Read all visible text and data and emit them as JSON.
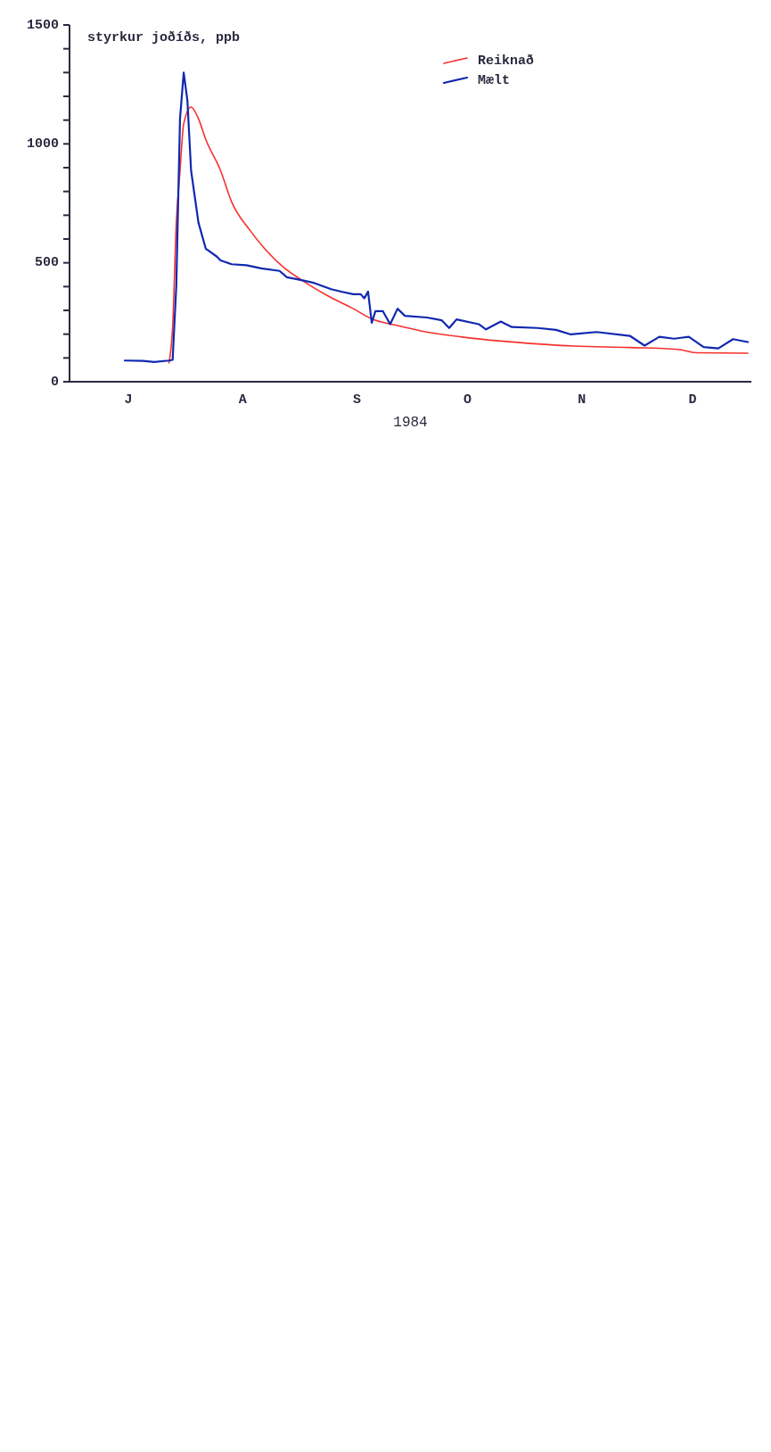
{
  "chart_data": {
    "type": "line",
    "ylabel": "styrkur joðíðs, ppb",
    "xlabel": "1984",
    "categories": [
      null,
      null,
      null,
      null,
      null,
      null,
      null,
      null,
      null,
      null,
      null,
      null,
      null,
      null,
      null,
      "J",
      null,
      null,
      null,
      null,
      null,
      null,
      null,
      null,
      null,
      null,
      null,
      null,
      null,
      null,
      null,
      null,
      null,
      null,
      null,
      null,
      null,
      null,
      null,
      null,
      null,
      null,
      null,
      null,
      null,
      null,
      "A",
      null,
      null,
      null,
      null,
      null,
      null,
      null,
      null,
      null,
      null,
      null,
      null,
      null,
      null,
      null,
      null,
      null,
      null,
      null,
      null,
      null,
      null,
      null,
      null,
      null,
      null,
      null,
      null,
      null,
      null,
      "S",
      null,
      null,
      null,
      null,
      null,
      null,
      null,
      null,
      null,
      null,
      null,
      null,
      null,
      null,
      null,
      null,
      null,
      null,
      null,
      null,
      null,
      null,
      null,
      null,
      null,
      null,
      null,
      null,
      null,
      "O",
      null,
      null,
      null,
      null,
      null,
      null,
      null,
      null,
      null,
      null,
      null,
      null,
      null,
      null,
      null,
      null,
      null,
      null,
      null,
      null,
      null,
      null,
      null,
      null,
      null,
      null,
      null,
      null,
      null,
      null,
      "N",
      null,
      null,
      null,
      null,
      null,
      null,
      null,
      null,
      null,
      null,
      null,
      null,
      null,
      null,
      null,
      null,
      null,
      null,
      null,
      null,
      null,
      null,
      null,
      null,
      null,
      null,
      null,
      null,
      null,
      "D",
      null,
      null,
      null,
      null,
      null,
      null,
      null,
      null,
      null,
      null,
      null,
      null,
      null,
      null,
      null
    ],
    "ylim": [
      0,
      1500
    ],
    "yticks": [
      0,
      {
        "value": 100,
        "label": null
      },
      {
        "value": 200,
        "label": null
      },
      {
        "value": 300,
        "label": null
      },
      {
        "value": 400,
        "label": null
      },
      500,
      {
        "value": 600,
        "label": null
      },
      {
        "value": 700,
        "label": null
      },
      {
        "value": 800,
        "label": null
      },
      {
        "value": 900,
        "label": null
      },
      1000,
      {
        "value": 1100,
        "label": null
      },
      {
        "value": 1200,
        "label": null
      },
      {
        "value": 1300,
        "label": null
      },
      {
        "value": 1400,
        "label": null
      },
      1500
    ],
    "grid": false,
    "legend": "top right",
    "marker": "none",
    "series": [
      {
        "name": "Reiknað",
        "color": "#f5302e",
        "values": [
          null,
          null,
          null,
          null,
          null,
          null,
          null,
          null,
          null,
          null,
          null,
          null,
          null,
          null,
          null,
          null,
          null,
          null,
          null,
          null,
          null,
          null,
          null,
          null,
          null,
          null,
          79,
          231,
          669,
          888,
          1084,
          null,
          1155,
          null,
          1106,
          null,
          1018,
          null,
          null,
          null,
          888,
          null,
          null,
          756,
          null,
          null,
          null,
          null,
          636,
          null,
          null,
          null,
          559,
          null,
          null,
          null,
          null,
          482,
          null,
          null,
          null,
          null,
          427,
          null,
          null,
          null,
          null,
          null,
          null,
          362,
          null,
          null,
          null,
          null,
          null,
          null,
          307,
          null,
          null,
          null,
          null,
          264,
          null,
          null,
          null,
          null,
          null,
          null,
          236,
          null,
          null,
          null,
          null,
          null,
          215,
          null,
          null,
          null,
          null,
          null,
          null,
          null,
          null,
          null,
          null,
          null,
          187,
          null,
          null,
          null,
          null,
          null,
          null,
          null,
          null,
          null,
          171,
          null,
          null,
          null,
          null,
          null,
          null,
          null,
          null,
          null,
          159,
          null,
          null,
          null,
          null,
          null,
          null,
          null,
          null,
          null,
          150,
          null,
          null,
          null,
          null,
          null,
          null,
          null,
          null,
          null,
          null,
          null,
          null,
          null,
          null,
          144,
          null,
          null,
          null,
          null,
          null,
          null,
          null,
          null,
          null,
          null,
          null,
          null,
          136,
          null,
          null,
          null,
          null,
          122,
          null,
          null,
          null,
          null,
          null,
          null,
          null,
          null,
          null,
          null,
          null,
          null,
          null,
          120
        ]
      },
      {
        "name": "Mælt",
        "color": "#1028b0",
        "values": [
          null,
          null,
          null,
          null,
          null,
          null,
          null,
          null,
          null,
          null,
          null,
          null,
          null,
          null,
          89,
          null,
          null,
          null,
          null,
          88,
          null,
          null,
          83,
          null,
          null,
          null,
          89,
          92,
          406,
          1106,
          1300,
          1183,
          888,
          null,
          669,
          null,
          559,
          null,
          null,
          526,
          510,
          null,
          null,
          494,
          null,
          null,
          null,
          490,
          null,
          null,
          null,
          477,
          null,
          null,
          null,
          null,
          466,
          null,
          439,
          null,
          null,
          null,
          427,
          null,
          null,
          417,
          null,
          null,
          400,
          null,
          389,
          null,
          null,
          378,
          null,
          null,
          368,
          null,
          368,
          351,
          379,
          248,
          297,
          null,
          297,
          null,
          242,
          null,
          307,
          null,
          277,
          null,
          null,
          null,
          null,
          null,
          270,
          null,
          null,
          null,
          258,
          null,
          226,
          null,
          262,
          null,
          null,
          null,
          null,
          null,
          242,
          null,
          220,
          null,
          null,
          null,
          253,
          null,
          null,
          230,
          null,
          null,
          null,
          null,
          null,
          null,
          226,
          null,
          null,
          null,
          null,
          218,
          null,
          null,
          null,
          199,
          null,
          null,
          null,
          null,
          null,
          null,
          209,
          null,
          null,
          null,
          null,
          null,
          null,
          null,
          null,
          193,
          null,
          null,
          null,
          152,
          null,
          null,
          null,
          189,
          null,
          null,
          null,
          181,
          null,
          null,
          null,
          189,
          null,
          null,
          null,
          146,
          null,
          null,
          null,
          140,
          null,
          null,
          null,
          179,
          null,
          null,
          null,
          167
        ]
      }
    ]
  }
}
